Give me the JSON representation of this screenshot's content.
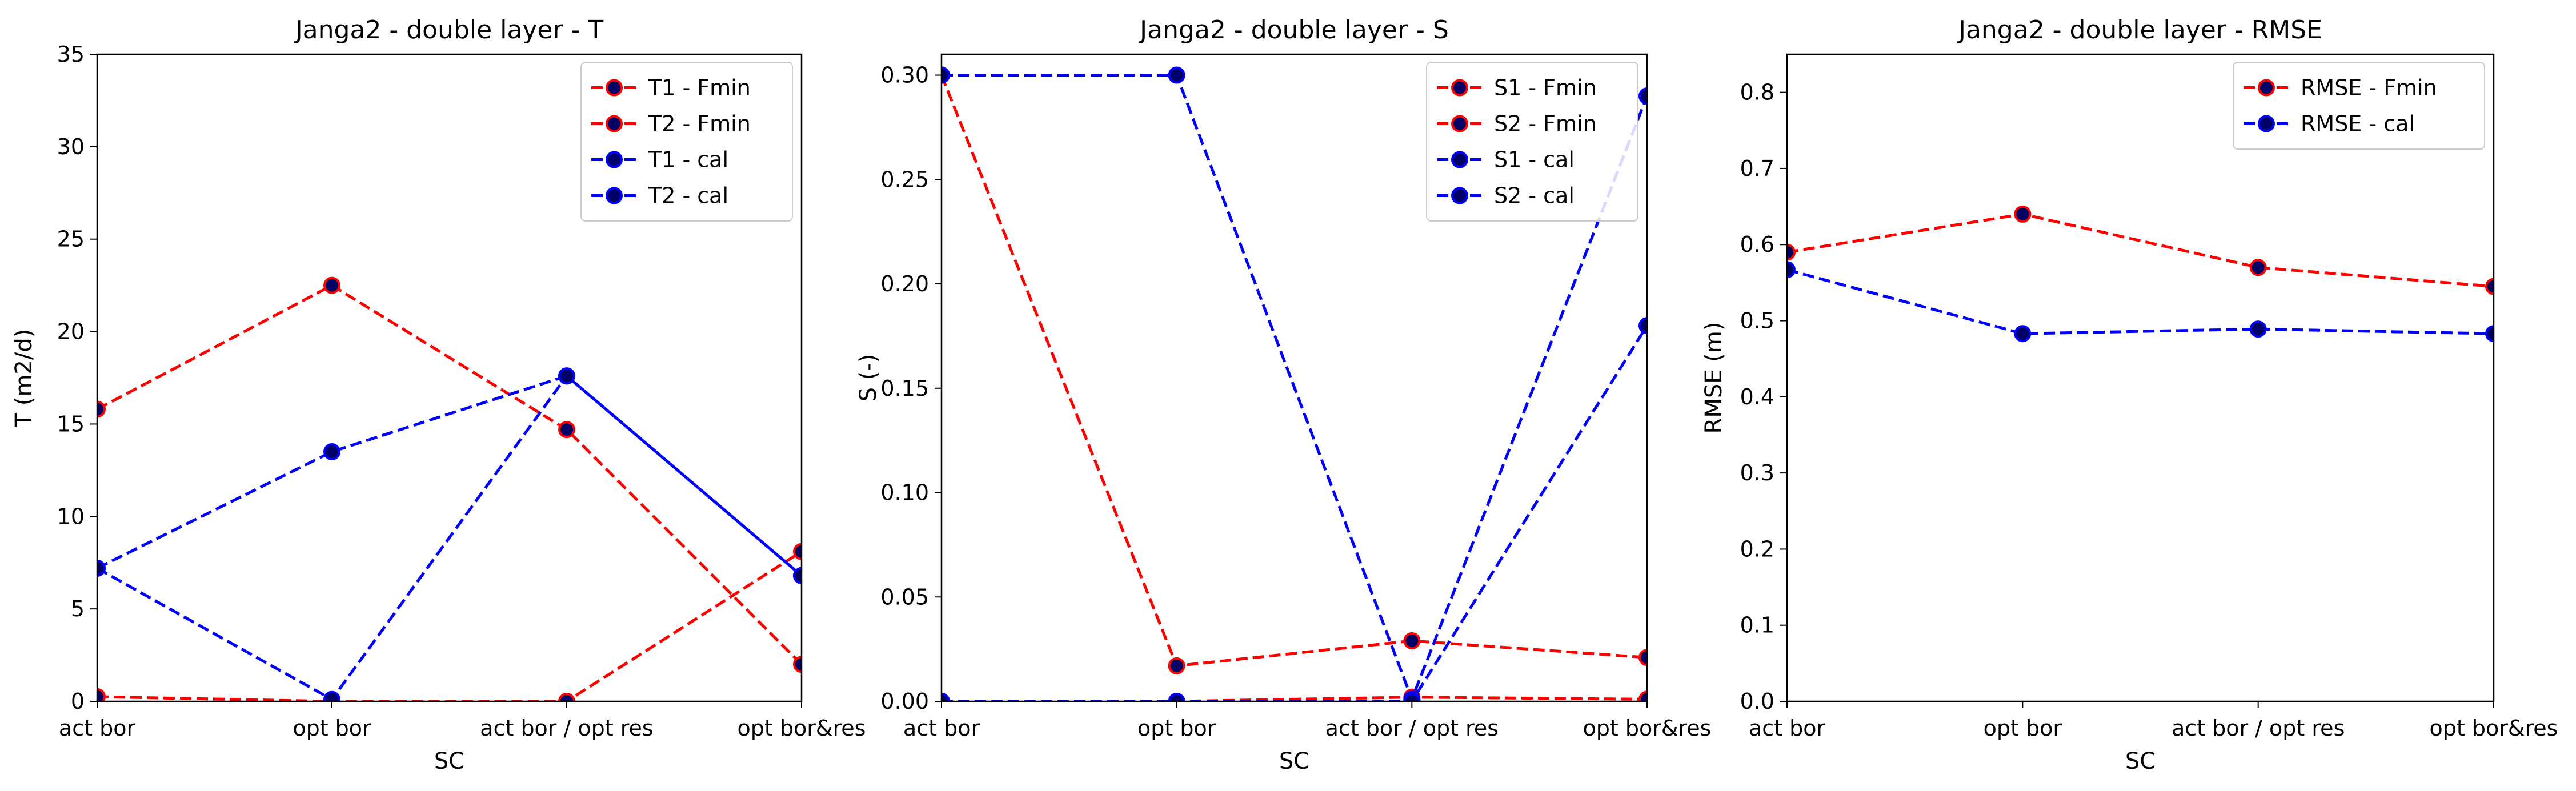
{
  "chart_data": [
    {
      "type": "line",
      "title": "Janga2 - double layer - T",
      "xlabel": "SC",
      "ylabel": "T (m2/d)",
      "categories": [
        "act bor",
        "opt bor",
        "act bor / opt res",
        "opt bor&res"
      ],
      "ylim": [
        0,
        35
      ],
      "yticks": [
        "0",
        "5",
        "10",
        "15",
        "20",
        "25",
        "30",
        "35"
      ],
      "legend_position": "top-right",
      "series": [
        {
          "name": "T1 - Fmin",
          "color": "#ff0000",
          "values": [
            15.8,
            22.5,
            14.7,
            2.0
          ]
        },
        {
          "name": "T2 - Fmin",
          "color": "#ff0000",
          "values": [
            0.25,
            0.0,
            0.0,
            8.1
          ]
        },
        {
          "name": "T1 - cal",
          "color": "#0000ff",
          "values": [
            7.2,
            13.5,
            17.6,
            6.8
          ]
        },
        {
          "name": "T2 - cal",
          "color": "#0000ff",
          "values": [
            7.2,
            0.1,
            17.6,
            6.8
          ]
        }
      ]
    },
    {
      "type": "line",
      "title": "Janga2 - double layer - S",
      "xlabel": "SC",
      "ylabel": "S (-)",
      "categories": [
        "act bor",
        "opt bor",
        "act bor / opt res",
        "opt bor&res"
      ],
      "ylim": [
        0,
        0.31
      ],
      "yticks": [
        "0.00",
        "0.05",
        "0.10",
        "0.15",
        "0.20",
        "0.25",
        "0.30"
      ],
      "legend_position": "top-right",
      "series": [
        {
          "name": "S1 - Fmin",
          "color": "#ff0000",
          "values": [
            0.3,
            0.017,
            0.029,
            0.021
          ]
        },
        {
          "name": "S2 - Fmin",
          "color": "#ff0000",
          "values": [
            0.0,
            0.0,
            0.002,
            0.001
          ]
        },
        {
          "name": "S1 - cal",
          "color": "#0000ff",
          "values": [
            0.3,
            0.3,
            0.001,
            0.29
          ]
        },
        {
          "name": "S2 - cal",
          "color": "#0000ff",
          "values": [
            0.0,
            0.0,
            0.0,
            0.18
          ]
        }
      ]
    },
    {
      "type": "line",
      "title": "Janga2 - double layer - RMSE",
      "xlabel": "SC",
      "ylabel": "RMSE (m)",
      "categories": [
        "act bor",
        "opt bor",
        "act bor / opt res",
        "opt bor&res"
      ],
      "ylim": [
        0,
        0.85
      ],
      "yticks": [
        "0.0",
        "0.1",
        "0.2",
        "0.3",
        "0.4",
        "0.5",
        "0.6",
        "0.7",
        "0.8"
      ],
      "legend_position": "top-right",
      "series": [
        {
          "name": "RMSE - Fmin",
          "color": "#ff0000",
          "values": [
            0.59,
            0.64,
            0.57,
            0.545
          ]
        },
        {
          "name": "RMSE - cal",
          "color": "#0000ff",
          "values": [
            0.567,
            0.483,
            0.489,
            0.483
          ]
        }
      ]
    }
  ]
}
